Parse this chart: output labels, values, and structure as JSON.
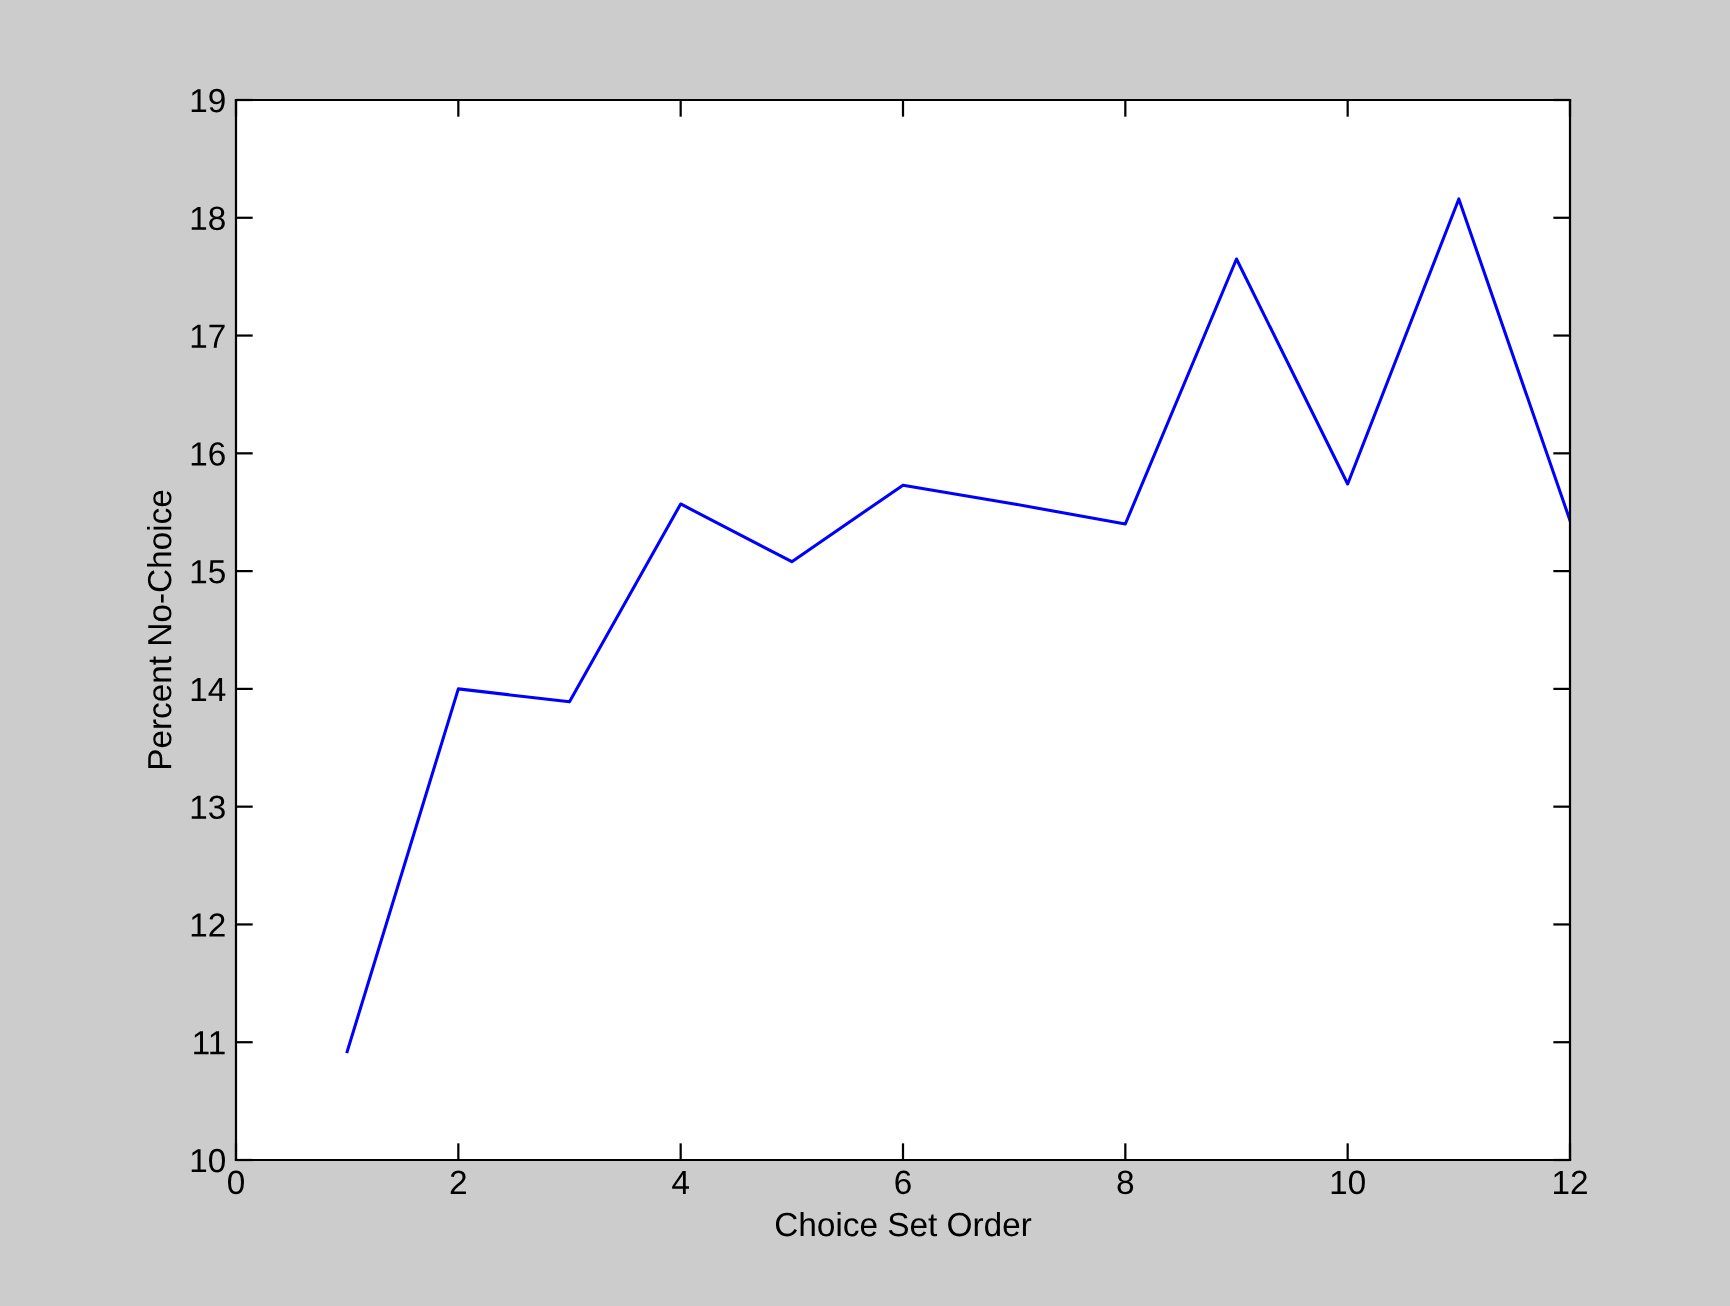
{
  "chart_data": {
    "type": "line",
    "xlabel": "Choice Set Order",
    "ylabel": "Percent No-Choice",
    "x": [
      1,
      2,
      3,
      4,
      5,
      6,
      7,
      8,
      9,
      10,
      11,
      12
    ],
    "series": [
      {
        "color": "#0000ff",
        "values": [
          10.92,
          14.0,
          13.89,
          15.57,
          15.08,
          15.73,
          15.57,
          15.4,
          17.65,
          15.74,
          18.16,
          15.43
        ]
      }
    ],
    "xlim": [
      0,
      12
    ],
    "xticks": [
      0,
      2,
      4,
      6,
      8,
      10,
      12
    ],
    "ylim": [
      10,
      19
    ],
    "yticks": [
      10,
      11,
      12,
      13,
      14,
      15,
      16,
      17,
      18,
      19
    ],
    "grid": false,
    "legend": false,
    "marker": "none",
    "line_style": "solid"
  }
}
